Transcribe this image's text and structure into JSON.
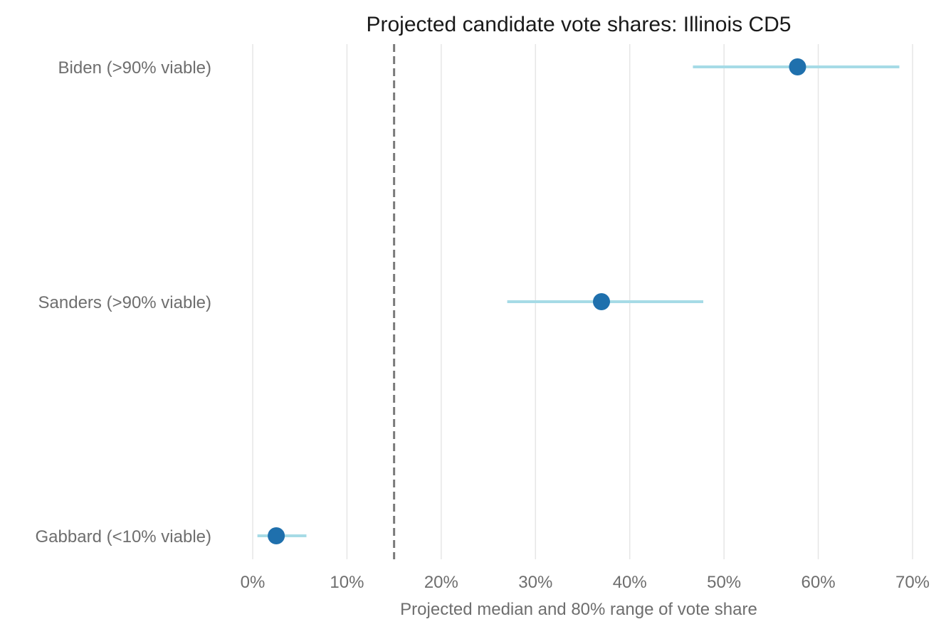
{
  "chart_data": {
    "type": "scatter",
    "title": "Projected candidate vote shares: Illinois CD5",
    "xlabel": "Projected median and 80% range of vote share",
    "ylabel": "",
    "xlim": [
      0,
      70
    ],
    "xticks": [
      0,
      10,
      20,
      30,
      40,
      50,
      60,
      70
    ],
    "xtick_labels": [
      "0%",
      "10%",
      "20%",
      "30%",
      "40%",
      "50%",
      "60%",
      "70%"
    ],
    "grid": "vertical",
    "reference_line": {
      "x": 15,
      "style": "dashed"
    },
    "categories": [
      "Biden (>90% viable)",
      "Sanders (>90% viable)",
      "Gabbard (<10% viable)"
    ],
    "series": [
      {
        "median": [
          57.8,
          37.0,
          2.5
        ],
        "low": [
          46.7,
          27.0,
          0.5
        ],
        "high": [
          68.6,
          47.8,
          5.7
        ]
      }
    ],
    "colors": {
      "median": "#1f70ad",
      "range": "#a6dbe6",
      "reference": "#7a7a7a",
      "grid": "#e6e6e6"
    }
  }
}
